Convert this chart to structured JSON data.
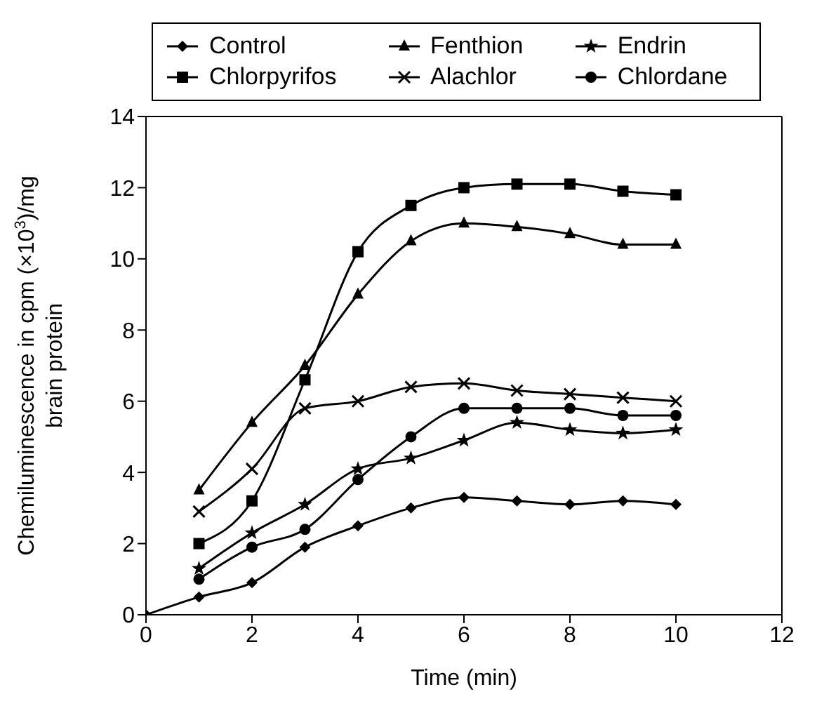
{
  "chart_data": {
    "type": "line",
    "xlabel": "Time (min)",
    "ylabel": "Chemiluminescence in cpm (×10$^{3}$)/mg brain protein",
    "x": [
      0,
      1,
      2,
      3,
      4,
      5,
      6,
      7,
      8,
      9,
      10
    ],
    "xlim": [
      0,
      12
    ],
    "xticks": [
      0,
      2,
      4,
      6,
      8,
      10,
      12
    ],
    "ylim": [
      0,
      14
    ],
    "yticks": [
      0,
      2,
      4,
      6,
      8,
      10,
      12,
      14
    ],
    "grid": false,
    "legend": "top",
    "line_style": "solid",
    "series": [
      {
        "name": "Control",
        "color": "#000000",
        "marker": "diamond",
        "values": [
          0,
          0.5,
          0.9,
          1.9,
          2.5,
          3.0,
          3.3,
          3.2,
          3.1,
          3.2,
          3.1
        ]
      },
      {
        "name": "Chlorpyrifos",
        "color": "#000000",
        "marker": "square",
        "values": [
          null,
          2.0,
          3.2,
          6.6,
          10.2,
          11.5,
          12.0,
          12.1,
          12.1,
          11.9,
          11.8
        ]
      },
      {
        "name": "Fenthion",
        "color": "#000000",
        "marker": "triangle",
        "values": [
          null,
          3.5,
          5.4,
          7.0,
          9.0,
          10.5,
          11.0,
          10.9,
          10.7,
          10.4,
          10.4
        ]
      },
      {
        "name": "Alachlor",
        "color": "#000000",
        "marker": "cross",
        "values": [
          null,
          2.9,
          4.1,
          5.8,
          6.0,
          6.4,
          6.5,
          6.3,
          6.2,
          6.1,
          6.0
        ]
      },
      {
        "name": "Endrin",
        "color": "#000000",
        "marker": "star",
        "values": [
          null,
          1.3,
          2.3,
          3.1,
          4.1,
          4.4,
          4.9,
          5.4,
          5.2,
          5.1,
          5.2
        ]
      },
      {
        "name": "Chlordane",
        "color": "#000000",
        "marker": "circle",
        "values": [
          null,
          1.0,
          1.9,
          2.4,
          3.8,
          5.0,
          5.8,
          5.8,
          5.8,
          5.6,
          5.6
        ]
      }
    ]
  }
}
